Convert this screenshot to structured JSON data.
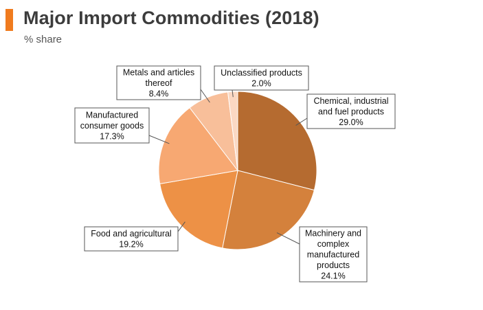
{
  "header": {
    "title": "Major Import Commodities (2018)",
    "subtitle": "% share",
    "accent_color": "#f07b1e"
  },
  "chart_data": {
    "type": "pie",
    "title": "Major Import Commodities (2018)",
    "subtitle": "% share",
    "slices": [
      {
        "label": "Chemical, industrial and fuel products",
        "label_lines": [
          "Chemical, industrial",
          "and fuel products"
        ],
        "value": 29.0,
        "value_text": "29.0%",
        "color": "#b56b30"
      },
      {
        "label": "Machinery and complex manufactured products",
        "label_lines": [
          "Machinery and",
          "complex",
          "manufactured",
          "products"
        ],
        "value": 24.1,
        "value_text": "24.1%",
        "color": "#d4813c"
      },
      {
        "label": "Food and agricultural",
        "label_lines": [
          "Food and agricultural"
        ],
        "value": 19.2,
        "value_text": "19.2%",
        "color": "#ed9146"
      },
      {
        "label": "Manufactured consumer goods",
        "label_lines": [
          "Manufactured",
          "consumer goods"
        ],
        "value": 17.3,
        "value_text": "17.3%",
        "color": "#f7a872"
      },
      {
        "label": "Metals and articles thereof",
        "label_lines": [
          "Metals and articles",
          "thereof"
        ],
        "value": 8.4,
        "value_text": "8.4%",
        "color": "#f8bf9a"
      },
      {
        "label": "Unclassified products",
        "label_lines": [
          "Unclassified products"
        ],
        "value": 2.0,
        "value_text": "2.0%",
        "color": "#fbd8c3"
      }
    ],
    "legend": "none"
  }
}
